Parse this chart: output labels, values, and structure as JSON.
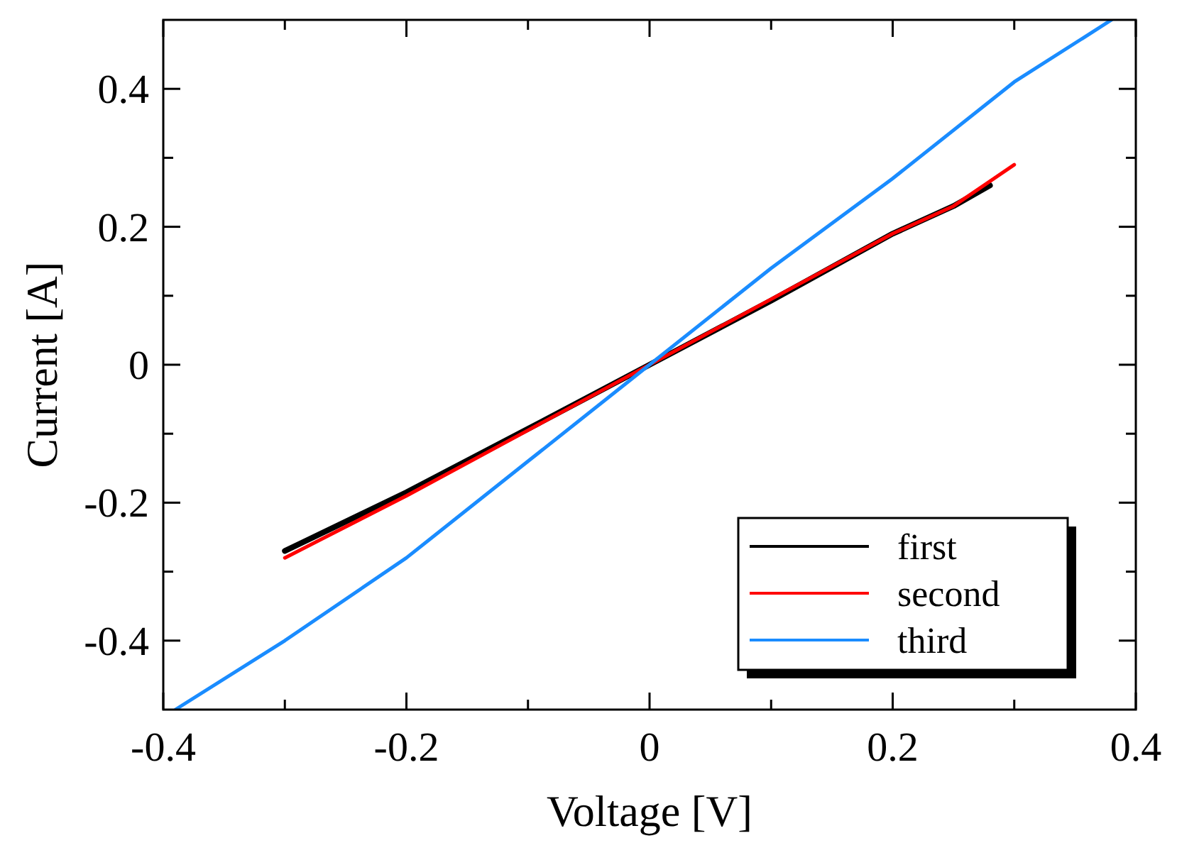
{
  "chart_data": {
    "type": "line",
    "xlabel": "Voltage [V]",
    "ylabel": "Current [A]",
    "xlim": [
      -0.4,
      0.4
    ],
    "ylim": [
      -0.5,
      0.5
    ],
    "xticks": [
      -0.4,
      {
        "value": -0.3,
        "label": null
      },
      -0.2,
      {
        "value": -0.1,
        "label": null
      },
      0,
      {
        "value": 0.1,
        "label": null
      },
      0.2,
      {
        "value": 0.3,
        "label": null
      },
      0.4
    ],
    "yticks": [
      -0.4,
      {
        "value": -0.3,
        "label": null
      },
      -0.2,
      {
        "value": -0.1,
        "label": null
      },
      0,
      {
        "value": 0.1,
        "label": null
      },
      0.2,
      {
        "value": 0.3,
        "label": null
      },
      0.4
    ],
    "grid": false,
    "legend": "bottom right",
    "line_style": "solid",
    "marker": "none",
    "series": [
      {
        "name": "first",
        "color": "#000000",
        "x": [
          -0.3,
          -0.2,
          -0.1,
          0,
          0.1,
          0.2,
          0.25,
          0.28
        ],
        "values": [
          -0.27,
          -0.185,
          -0.093,
          0,
          0.093,
          0.19,
          0.23,
          0.26
        ]
      },
      {
        "name": "second",
        "color": "#ff0000",
        "x": [
          -0.3,
          -0.2,
          -0.1,
          0,
          0.1,
          0.2,
          0.25,
          0.3
        ],
        "values": [
          -0.28,
          -0.19,
          -0.095,
          0,
          0.095,
          0.19,
          0.23,
          0.29
        ]
      },
      {
        "name": "third",
        "color": "#1a8cff",
        "x": [
          -0.39,
          -0.3,
          -0.2,
          -0.1,
          0,
          0.1,
          0.2,
          0.3,
          0.38
        ],
        "values": [
          -0.5,
          -0.4,
          -0.28,
          -0.14,
          0,
          0.14,
          0.27,
          0.41,
          0.5
        ]
      }
    ]
  }
}
